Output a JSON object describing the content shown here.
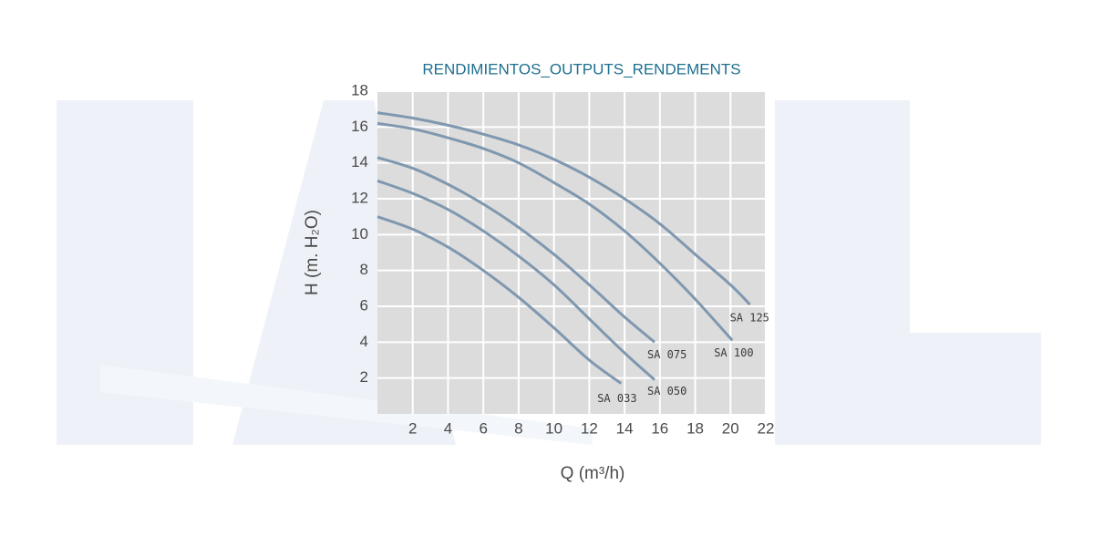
{
  "chart_data": {
    "type": "line",
    "title": "RENDIMIENTOS_OUTPUTS_RENDEMENTS",
    "x_label": "Q (m³/h)",
    "y_label": "H (m. H₂O)",
    "xlim": [
      0,
      22
    ],
    "ylim": [
      0,
      18
    ],
    "xticks": [
      2,
      4,
      6,
      8,
      10,
      12,
      14,
      16,
      18,
      20,
      22
    ],
    "yticks": [
      2,
      4,
      6,
      8,
      10,
      12,
      14,
      16,
      18
    ],
    "grid": true,
    "series": [
      {
        "name": "SA 033",
        "color": "#7f98af",
        "x": [
          0,
          2,
          4,
          6,
          8,
          10,
          12,
          13.8
        ],
        "values": [
          11,
          10.3,
          9.3,
          8,
          6.5,
          4.8,
          3,
          1.7
        ]
      },
      {
        "name": "SA 050",
        "color": "#7f98af",
        "x": [
          0,
          2,
          4,
          6,
          8,
          10,
          12,
          14,
          15.7
        ],
        "values": [
          13,
          12.3,
          11.4,
          10.2,
          8.8,
          7.2,
          5.3,
          3.4,
          1.9
        ]
      },
      {
        "name": "SA 075",
        "color": "#7f98af",
        "x": [
          0,
          2,
          4,
          6,
          8,
          10,
          12,
          14,
          15.7
        ],
        "values": [
          14.3,
          13.7,
          12.8,
          11.7,
          10.4,
          8.9,
          7.2,
          5.4,
          4
        ]
      },
      {
        "name": "SA 100",
        "color": "#7f98af",
        "x": [
          0,
          2,
          4,
          6,
          8,
          10,
          12,
          14,
          16,
          18,
          20.1
        ],
        "values": [
          16.2,
          15.9,
          15.4,
          14.8,
          14,
          12.9,
          11.7,
          10.2,
          8.4,
          6.4,
          4.1
        ]
      },
      {
        "name": "SA 125",
        "color": "#7f98af",
        "x": [
          0,
          2,
          4,
          6,
          8,
          10,
          12,
          14,
          16,
          18,
          20,
          21.1
        ],
        "values": [
          16.8,
          16.5,
          16.1,
          15.6,
          15,
          14.2,
          13.2,
          12,
          10.6,
          8.9,
          7.2,
          6.1
        ]
      }
    ]
  }
}
